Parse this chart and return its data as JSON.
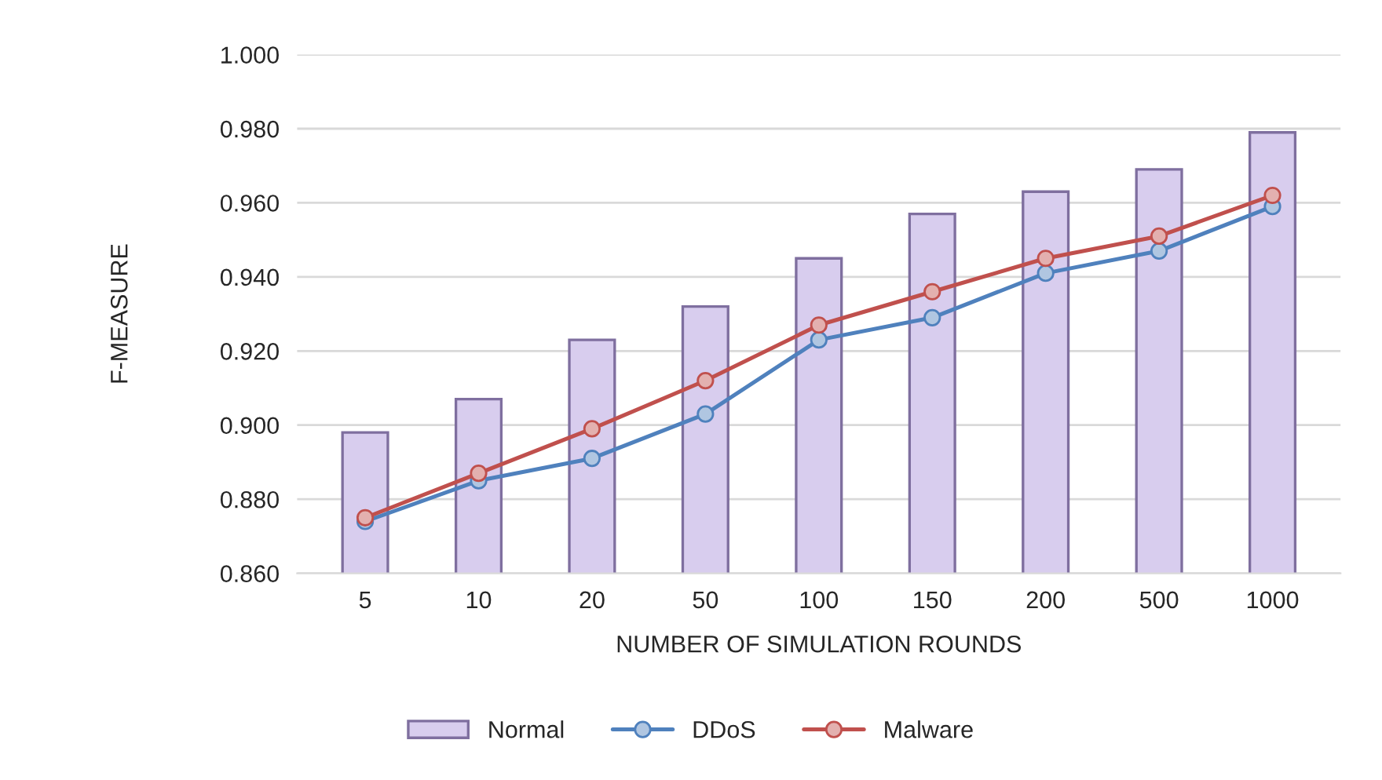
{
  "chart_data": {
    "type": "bar",
    "xlabel": "NUMBER OF SIMULATION ROUNDS",
    "ylabel": "F-MEASURE",
    "categories": [
      "5",
      "10",
      "20",
      "50",
      "100",
      "150",
      "200",
      "500",
      "1000"
    ],
    "series": [
      {
        "name": "Normal",
        "color": "#d8cdee",
        "values": [
          0.898,
          0.907,
          0.923,
          0.932,
          0.945,
          0.957,
          0.963,
          0.969,
          0.979
        ]
      },
      {
        "name": "DDoS",
        "type": "line",
        "color": "#4f81bd",
        "values": [
          0.874,
          0.885,
          0.891,
          0.903,
          0.923,
          0.929,
          0.941,
          0.947,
          0.959
        ]
      },
      {
        "name": "Malware",
        "type": "line",
        "color": "#c0504d",
        "values": [
          0.875,
          0.887,
          0.899,
          0.912,
          0.927,
          0.936,
          0.945,
          0.951,
          0.962
        ]
      }
    ],
    "ylim": [
      0.86,
      1.0
    ],
    "yticks": [
      {
        "value": 0.86,
        "label": "0.860"
      },
      {
        "value": 0.88,
        "label": "0.880"
      },
      {
        "value": 0.9,
        "label": "0.900"
      },
      {
        "value": 0.92,
        "label": "0.920"
      },
      {
        "value": 0.94,
        "label": "0.940"
      },
      {
        "value": 0.96,
        "label": "0.960"
      },
      {
        "value": 0.98,
        "label": "0.980"
      },
      {
        "value": 1.0,
        "label": "1.000"
      }
    ],
    "grid": "y",
    "legend": "bottom",
    "marker": "circle",
    "line_style": "solid"
  }
}
